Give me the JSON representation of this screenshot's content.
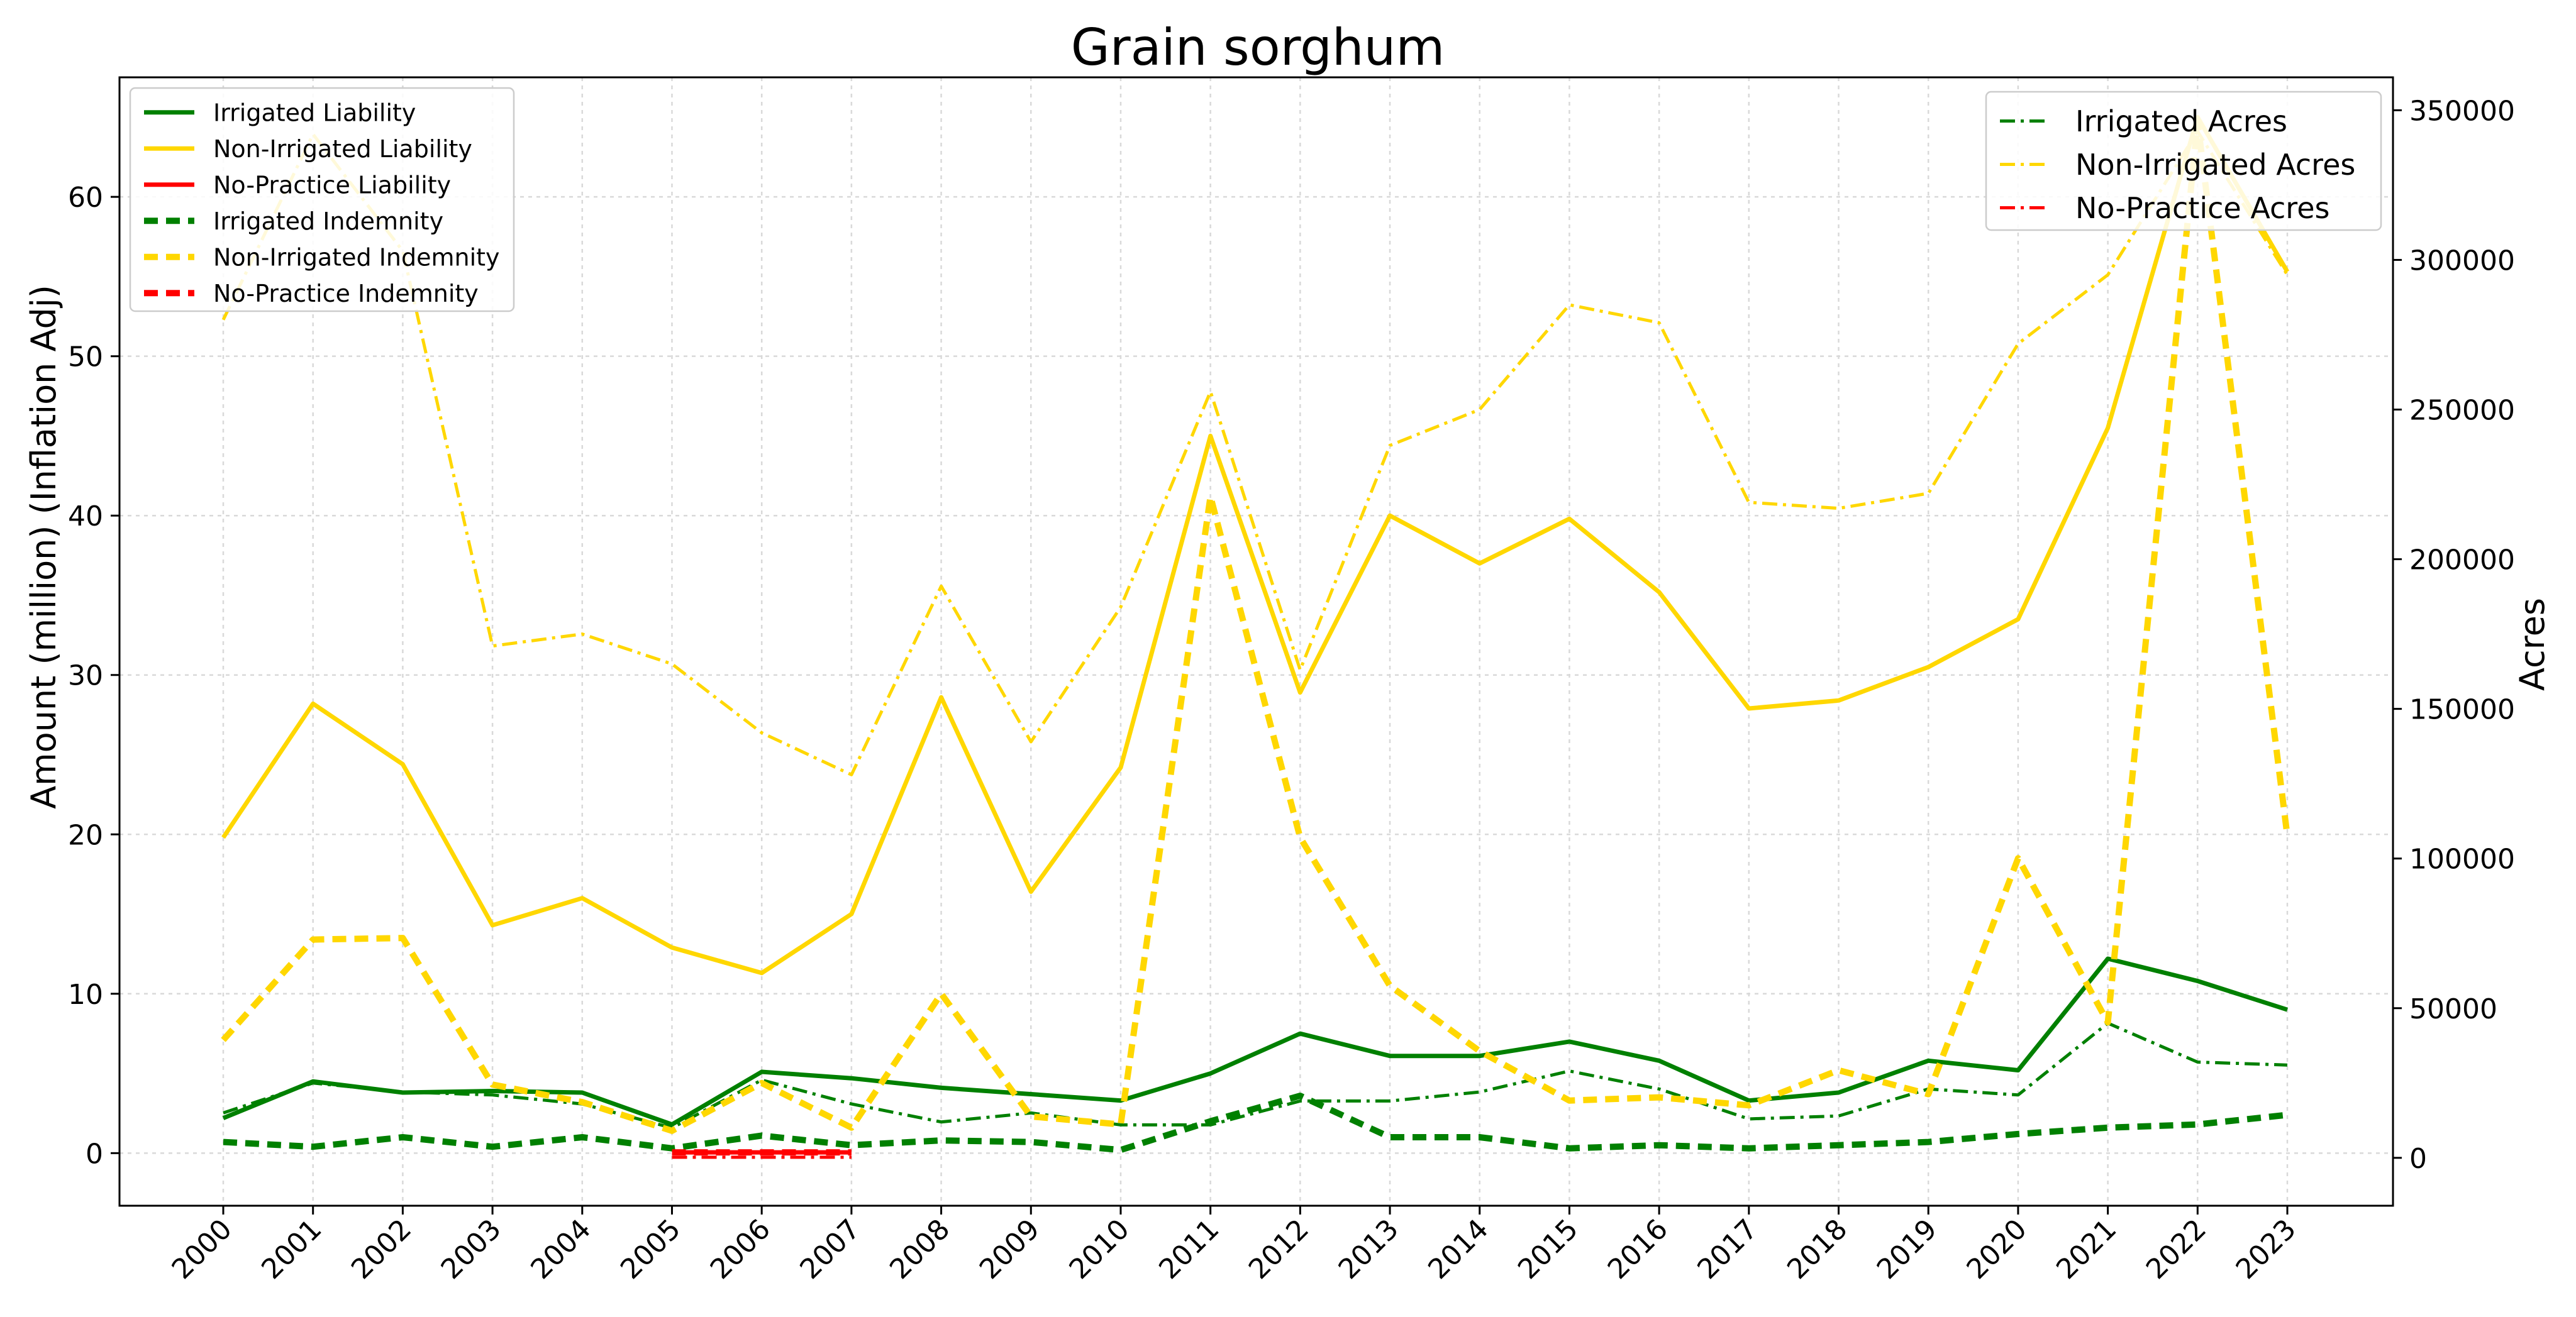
{
  "chart_data": {
    "type": "line",
    "title": "Grain sorghum",
    "ylabel_left": "Amount (million) (Inflation Adj)",
    "ylabel_right": "Acres",
    "xlabel": "",
    "x": [
      "2000",
      "2001",
      "2002",
      "2003",
      "2004",
      "2005",
      "2006",
      "2007",
      "2008",
      "2009",
      "2010",
      "2011",
      "2012",
      "2013",
      "2014",
      "2015",
      "2016",
      "2017",
      "2018",
      "2019",
      "2020",
      "2021",
      "2022",
      "2023"
    ],
    "ylim_left": [
      -3.3,
      67.5
    ],
    "ylim_right": [
      -16000,
      361000
    ],
    "yticks_left": [
      0,
      10,
      20,
      30,
      40,
      50,
      60
    ],
    "yticks_right": [
      0,
      50000,
      100000,
      150000,
      200000,
      250000,
      300000,
      350000
    ],
    "grid": true,
    "legend_left_placement": "upper-left",
    "legend_right_placement": "upper-right",
    "series_left": [
      {
        "name": "Irrigated Liability",
        "color": "#008000",
        "style": "solid",
        "start": 0,
        "values": [
          2.2,
          4.5,
          3.8,
          3.9,
          3.8,
          1.8,
          5.1,
          4.7,
          4.1,
          3.7,
          3.3,
          5.0,
          7.5,
          6.1,
          6.1,
          7.0,
          5.8,
          3.3,
          3.8,
          5.8,
          5.2,
          12.2,
          10.8,
          9.0
        ]
      },
      {
        "name": "Non-Irrigated Liability",
        "color": "#FFD700",
        "style": "solid",
        "start": 0,
        "values": [
          19.8,
          28.2,
          24.4,
          14.3,
          16.0,
          12.9,
          11.3,
          15.0,
          28.6,
          16.4,
          24.2,
          45.0,
          28.9,
          40.0,
          37.0,
          39.8,
          35.2,
          27.9,
          28.4,
          30.5,
          33.5,
          45.5,
          65.0,
          55.3
        ]
      },
      {
        "name": "No-Practice Liability",
        "color": "#FF0000",
        "style": "solid",
        "start": 5,
        "values": [
          0.05,
          0.05,
          0.05
        ]
      },
      {
        "name": "Irrigated Indemnity",
        "color": "#008000",
        "style": "dashed",
        "start": 0,
        "values": [
          0.7,
          0.4,
          1.0,
          0.4,
          1.0,
          0.3,
          1.1,
          0.5,
          0.8,
          0.7,
          0.2,
          2.0,
          3.6,
          1.0,
          1.0,
          0.3,
          0.5,
          0.3,
          0.5,
          0.7,
          1.2,
          1.6,
          1.8,
          2.4
        ]
      },
      {
        "name": "Non-Irrigated Indemnity",
        "color": "#FFD700",
        "style": "dashed",
        "start": 0,
        "values": [
          7.1,
          13.4,
          13.5,
          4.3,
          3.2,
          1.4,
          4.4,
          1.6,
          10.0,
          2.3,
          1.8,
          41.2,
          19.8,
          10.5,
          6.4,
          3.3,
          3.5,
          3.0,
          5.2,
          3.7,
          18.5,
          8.2,
          64.7,
          19.9
        ]
      },
      {
        "name": "No-Practice Indemnity",
        "color": "#FF0000",
        "style": "dashed",
        "start": 5,
        "values": [
          0.05,
          0.05,
          0.05
        ]
      }
    ],
    "series_right": [
      {
        "name": "Irrigated Acres",
        "color": "#008000",
        "style": "dashdot",
        "start": 0,
        "values": [
          15000,
          25000,
          22000,
          21000,
          18000,
          10000,
          26000,
          18000,
          12000,
          15000,
          11000,
          11000,
          19000,
          19000,
          22000,
          29000,
          23000,
          13000,
          14000,
          23000,
          21000,
          45000,
          32000,
          31000
        ]
      },
      {
        "name": "Non-Irrigated Acres",
        "color": "#FFD700",
        "style": "dashdot",
        "start": 0,
        "values": [
          280000,
          342000,
          303000,
          171000,
          175000,
          165000,
          142000,
          128000,
          191000,
          139000,
          184000,
          256000,
          163000,
          238000,
          250000,
          285000,
          279000,
          219000,
          217000,
          222000,
          272000,
          295000,
          343000,
          295000
        ]
      },
      {
        "name": "No-Practice Acres",
        "color": "#FF0000",
        "style": "dashdot",
        "start": 5,
        "values": [
          200,
          200,
          200
        ]
      }
    ]
  }
}
